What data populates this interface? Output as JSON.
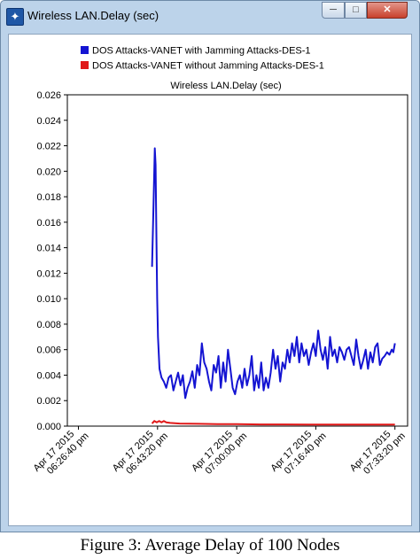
{
  "window": {
    "title": "Wireless LAN.Delay (sec)",
    "icon": "network-scope-icon",
    "controls": {
      "minimize": "─",
      "maximize": "□",
      "close": "✕"
    }
  },
  "caption": "Figure 3: Average Delay of 100 Nodes",
  "colors": {
    "series1": "#1414d2",
    "series2": "#e01818",
    "plot_border": "#000000",
    "background": "#ffffff"
  },
  "chart_data": {
    "type": "line",
    "title": "Wireless LAN.Delay (sec)",
    "xlabel": "",
    "ylabel": "",
    "ylim": [
      0,
      0.026
    ],
    "yticks": [
      0.0,
      0.002,
      0.004,
      0.006,
      0.008,
      0.01,
      0.012,
      0.014,
      0.016,
      0.018,
      0.02,
      0.022,
      0.024,
      0.026
    ],
    "ytick_labels": [
      "0.000",
      "0.002",
      "0.004",
      "0.006",
      "0.008",
      "0.010",
      "0.012",
      "0.014",
      "0.016",
      "0.018",
      "0.020",
      "0.022",
      "0.024",
      "0.026"
    ],
    "xlim": [
      "06:24:20 pm",
      "07:36:00 pm"
    ],
    "xticks": [
      {
        "t": "06:26:40 pm",
        "label_line1": "Apr 17 2015",
        "label_line2": "06:26:40 pm"
      },
      {
        "t": "06:43:20 pm",
        "label_line1": "Apr 17 2015",
        "label_line2": "06:43:20 pm"
      },
      {
        "t": "07:00:00 pm",
        "label_line1": "Apr 17 2015",
        "label_line2": "07:00:00 pm"
      },
      {
        "t": "07:16:40 pm",
        "label_line1": "Apr 17 2015",
        "label_line2": "07:16:40 pm"
      },
      {
        "t": "07:33:20 pm",
        "label_line1": "Apr 17 2015",
        "label_line2": "07:33:20 pm"
      }
    ],
    "grid": false,
    "legend_position": "top",
    "series": [
      {
        "name": "DOS Attacks-VANET with Jamming Attacks-DES-1",
        "color": "#1414d2",
        "points": [
          [
            "06:42:10 pm",
            0.0125
          ],
          [
            "06:42:30 pm",
            0.0175
          ],
          [
            "06:42:45 pm",
            0.0218
          ],
          [
            "06:42:55 pm",
            0.0205
          ],
          [
            "06:43:05 pm",
            0.015
          ],
          [
            "06:43:15 pm",
            0.01
          ],
          [
            "06:43:25 pm",
            0.007
          ],
          [
            "06:43:45 pm",
            0.0045
          ],
          [
            "06:44:10 pm",
            0.0038
          ],
          [
            "06:44:40 pm",
            0.0035
          ],
          [
            "06:45:10 pm",
            0.003
          ],
          [
            "06:45:40 pm",
            0.0038
          ],
          [
            "06:46:10 pm",
            0.004
          ],
          [
            "06:46:40 pm",
            0.0028
          ],
          [
            "06:47:10 pm",
            0.0035
          ],
          [
            "06:47:40 pm",
            0.0042
          ],
          [
            "06:48:10 pm",
            0.0032
          ],
          [
            "06:48:40 pm",
            0.004
          ],
          [
            "06:49:10 pm",
            0.0022
          ],
          [
            "06:49:40 pm",
            0.003
          ],
          [
            "06:50:10 pm",
            0.0035
          ],
          [
            "06:50:40 pm",
            0.0043
          ],
          [
            "06:51:10 pm",
            0.003
          ],
          [
            "06:51:40 pm",
            0.0048
          ],
          [
            "06:52:10 pm",
            0.004
          ],
          [
            "06:52:40 pm",
            0.0065
          ],
          [
            "06:53:10 pm",
            0.005
          ],
          [
            "06:53:40 pm",
            0.0045
          ],
          [
            "06:54:10 pm",
            0.0035
          ],
          [
            "06:54:40 pm",
            0.0028
          ],
          [
            "06:55:10 pm",
            0.0048
          ],
          [
            "06:55:40 pm",
            0.0042
          ],
          [
            "06:56:10 pm",
            0.0055
          ],
          [
            "06:56:40 pm",
            0.003
          ],
          [
            "06:57:10 pm",
            0.005
          ],
          [
            "06:57:40 pm",
            0.0035
          ],
          [
            "06:58:10 pm",
            0.006
          ],
          [
            "06:58:40 pm",
            0.0045
          ],
          [
            "06:59:10 pm",
            0.003
          ],
          [
            "06:59:40 pm",
            0.0025
          ],
          [
            "07:00:10 pm",
            0.0035
          ],
          [
            "07:00:40 pm",
            0.004
          ],
          [
            "07:01:10 pm",
            0.003
          ],
          [
            "07:01:40 pm",
            0.0045
          ],
          [
            "07:02:10 pm",
            0.0032
          ],
          [
            "07:02:40 pm",
            0.004
          ],
          [
            "07:03:10 pm",
            0.0055
          ],
          [
            "07:03:40 pm",
            0.0028
          ],
          [
            "07:04:10 pm",
            0.004
          ],
          [
            "07:04:40 pm",
            0.003
          ],
          [
            "07:05:10 pm",
            0.005
          ],
          [
            "07:05:40 pm",
            0.0028
          ],
          [
            "07:06:10 pm",
            0.0038
          ],
          [
            "07:06:40 pm",
            0.003
          ],
          [
            "07:07:10 pm",
            0.0042
          ],
          [
            "07:07:40 pm",
            0.006
          ],
          [
            "07:08:10 pm",
            0.0045
          ],
          [
            "07:08:40 pm",
            0.0055
          ],
          [
            "07:09:10 pm",
            0.0035
          ],
          [
            "07:09:40 pm",
            0.005
          ],
          [
            "07:10:10 pm",
            0.0045
          ],
          [
            "07:10:40 pm",
            0.006
          ],
          [
            "07:11:10 pm",
            0.005
          ],
          [
            "07:11:40 pm",
            0.0065
          ],
          [
            "07:12:10 pm",
            0.0055
          ],
          [
            "07:12:40 pm",
            0.007
          ],
          [
            "07:13:10 pm",
            0.005
          ],
          [
            "07:13:40 pm",
            0.0065
          ],
          [
            "07:14:10 pm",
            0.0055
          ],
          [
            "07:14:40 pm",
            0.006
          ],
          [
            "07:15:10 pm",
            0.0048
          ],
          [
            "07:15:40 pm",
            0.0058
          ],
          [
            "07:16:10 pm",
            0.0065
          ],
          [
            "07:16:40 pm",
            0.0055
          ],
          [
            "07:17:10 pm",
            0.0075
          ],
          [
            "07:17:40 pm",
            0.006
          ],
          [
            "07:18:10 pm",
            0.0052
          ],
          [
            "07:18:40 pm",
            0.0062
          ],
          [
            "07:19:10 pm",
            0.0045
          ],
          [
            "07:19:40 pm",
            0.007
          ],
          [
            "07:20:10 pm",
            0.0055
          ],
          [
            "07:20:40 pm",
            0.006
          ],
          [
            "07:21:10 pm",
            0.005
          ],
          [
            "07:21:40 pm",
            0.0062
          ],
          [
            "07:22:10 pm",
            0.0058
          ],
          [
            "07:22:40 pm",
            0.0052
          ],
          [
            "07:23:10 pm",
            0.006
          ],
          [
            "07:23:40 pm",
            0.0062
          ],
          [
            "07:24:10 pm",
            0.0055
          ],
          [
            "07:24:40 pm",
            0.0048
          ],
          [
            "07:25:10 pm",
            0.0068
          ],
          [
            "07:25:40 pm",
            0.0055
          ],
          [
            "07:26:10 pm",
            0.0045
          ],
          [
            "07:26:40 pm",
            0.0052
          ],
          [
            "07:27:10 pm",
            0.006
          ],
          [
            "07:27:40 pm",
            0.0045
          ],
          [
            "07:28:10 pm",
            0.0058
          ],
          [
            "07:28:40 pm",
            0.005
          ],
          [
            "07:29:10 pm",
            0.0062
          ],
          [
            "07:29:40 pm",
            0.0065
          ],
          [
            "07:30:10 pm",
            0.0048
          ],
          [
            "07:30:40 pm",
            0.0053
          ],
          [
            "07:31:10 pm",
            0.0055
          ],
          [
            "07:31:40 pm",
            0.0058
          ],
          [
            "07:32:10 pm",
            0.0056
          ],
          [
            "07:32:40 pm",
            0.006
          ],
          [
            "07:33:00 pm",
            0.0058
          ],
          [
            "07:33:20 pm",
            0.0065
          ]
        ]
      },
      {
        "name": "DOS Attacks-VANET without Jamming Attacks-DES-1",
        "color": "#e01818",
        "points": [
          [
            "06:42:10 pm",
            0.0002
          ],
          [
            "06:42:40 pm",
            0.0004
          ],
          [
            "06:43:10 pm",
            0.0003
          ],
          [
            "06:43:40 pm",
            0.0004
          ],
          [
            "06:44:10 pm",
            0.0003
          ],
          [
            "06:44:40 pm",
            0.0004
          ],
          [
            "06:45:10 pm",
            0.0003
          ],
          [
            "06:46:00 pm",
            0.00025
          ],
          [
            "06:48:00 pm",
            0.0002
          ],
          [
            "06:52:00 pm",
            0.00018
          ],
          [
            "06:56:00 pm",
            0.00015
          ],
          [
            "07:00:00 pm",
            0.00015
          ],
          [
            "07:05:00 pm",
            0.00013
          ],
          [
            "07:10:00 pm",
            0.00013
          ],
          [
            "07:15:00 pm",
            0.00012
          ],
          [
            "07:20:00 pm",
            0.00012
          ],
          [
            "07:25:00 pm",
            0.00012
          ],
          [
            "07:30:00 pm",
            0.00012
          ],
          [
            "07:33:20 pm",
            0.00012
          ]
        ]
      }
    ]
  }
}
